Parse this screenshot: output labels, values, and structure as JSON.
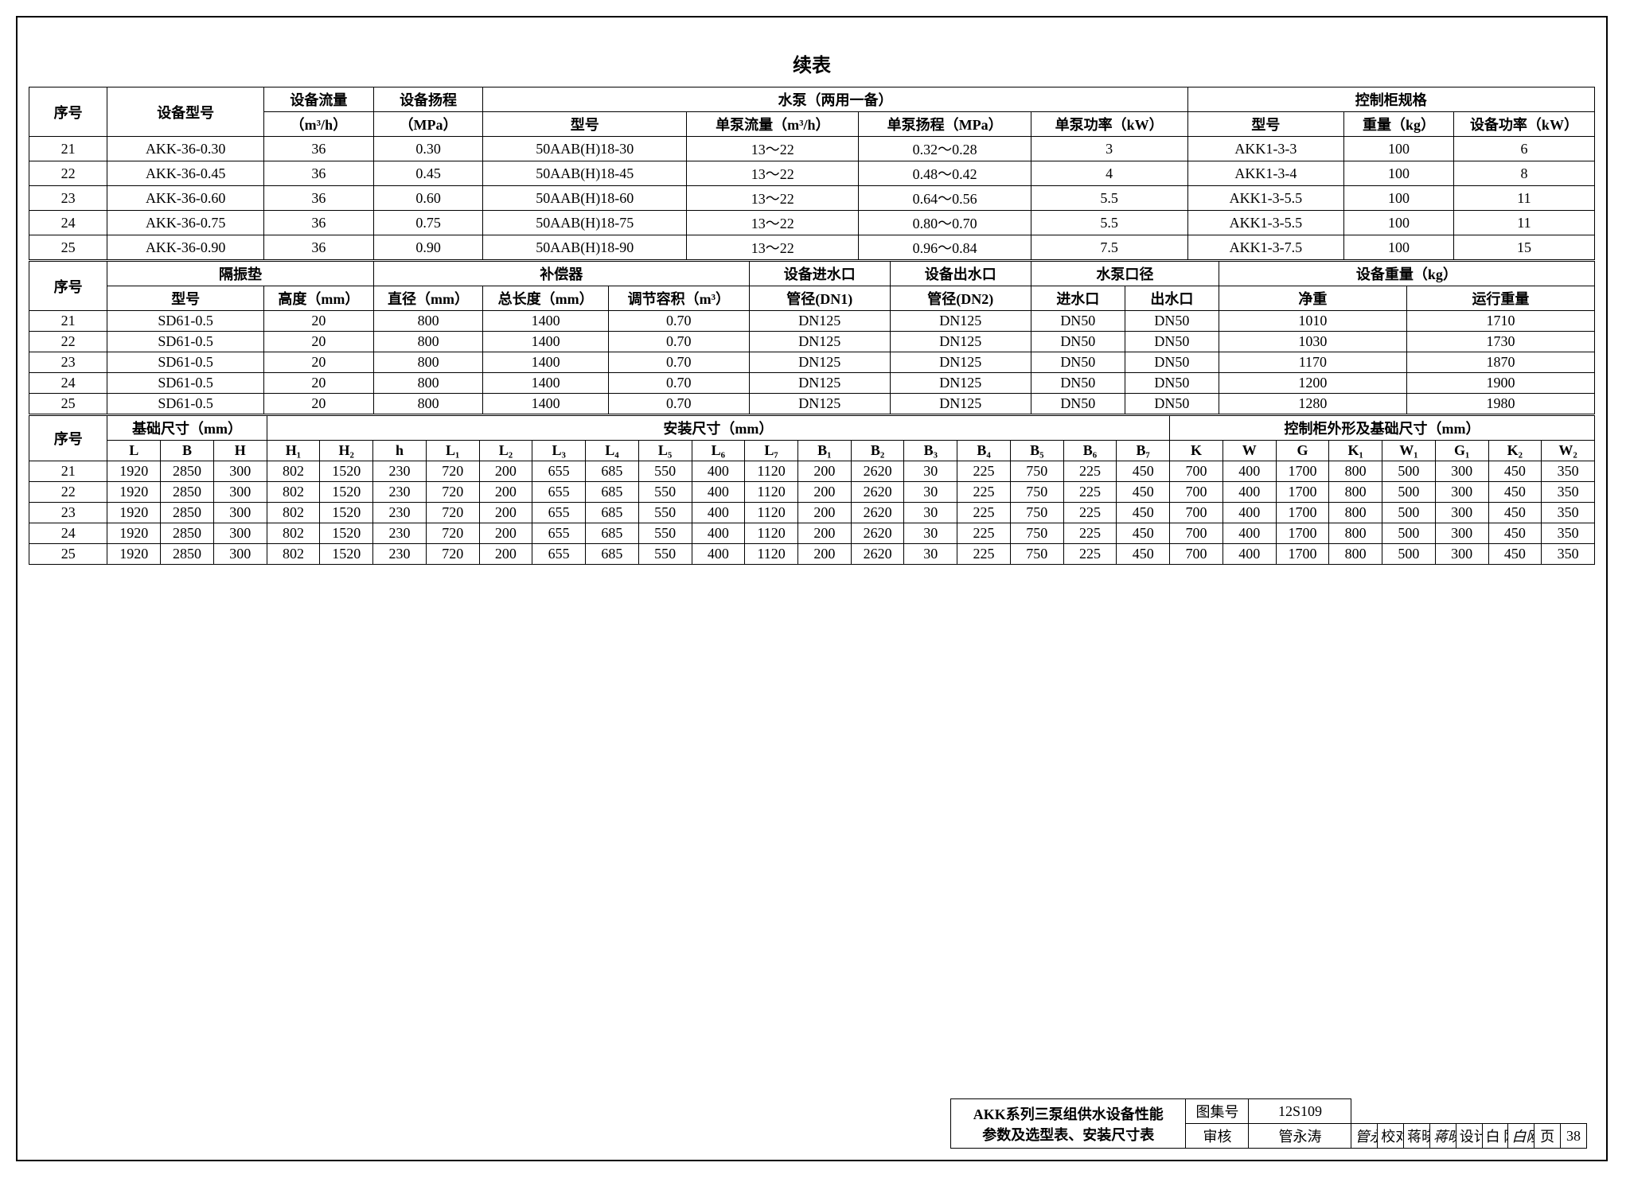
{
  "title": "续表",
  "t1": {
    "h": {
      "seq": "序号",
      "model": "设备型号",
      "flow": "设备流量",
      "flow_u": "（m³/h）",
      "head": "设备扬程",
      "head_u": "（MPa）",
      "pump": "水泵（两用一备）",
      "pump_model": "型号",
      "pump_flow": "单泵流量（m³/h）",
      "pump_head": "单泵扬程（MPa）",
      "pump_power": "单泵功率（kW）",
      "cab": "控制柜规格",
      "cab_model": "型号",
      "cab_weight": "重量（kg）",
      "cab_power": "设备功率（kW）"
    },
    "r": [
      {
        "n": "21",
        "m": "AKK-36-0.30",
        "f": "36",
        "hd": "0.30",
        "pm": "50AAB(H)18-30",
        "pf": "13～22",
        "ph": "0.32～0.28",
        "pp": "3",
        "cm": "AKK1-3-3",
        "cw": "100",
        "cp": "6"
      },
      {
        "n": "22",
        "m": "AKK-36-0.45",
        "f": "36",
        "hd": "0.45",
        "pm": "50AAB(H)18-45",
        "pf": "13～22",
        "ph": "0.48～0.42",
        "pp": "4",
        "cm": "AKK1-3-4",
        "cw": "100",
        "cp": "8"
      },
      {
        "n": "23",
        "m": "AKK-36-0.60",
        "f": "36",
        "hd": "0.60",
        "pm": "50AAB(H)18-60",
        "pf": "13～22",
        "ph": "0.64～0.56",
        "pp": "5.5",
        "cm": "AKK1-3-5.5",
        "cw": "100",
        "cp": "11"
      },
      {
        "n": "24",
        "m": "AKK-36-0.75",
        "f": "36",
        "hd": "0.75",
        "pm": "50AAB(H)18-75",
        "pf": "13～22",
        "ph": "0.80～0.70",
        "pp": "5.5",
        "cm": "AKK1-3-5.5",
        "cw": "100",
        "cp": "11"
      },
      {
        "n": "25",
        "m": "AKK-36-0.90",
        "f": "36",
        "hd": "0.90",
        "pm": "50AAB(H)18-90",
        "pf": "13～22",
        "ph": "0.96～0.84",
        "pp": "7.5",
        "cm": "AKK1-3-7.5",
        "cw": "100",
        "cp": "15"
      }
    ]
  },
  "t2": {
    "h": {
      "seq": "序号",
      "pad": "隔振垫",
      "pad_m": "型号",
      "pad_h": "高度（mm）",
      "comp": "补偿器",
      "comp_d": "直径（mm）",
      "comp_l": "总长度（mm）",
      "comp_v": "调节容积（m³）",
      "in": "设备进水口",
      "in2": "管径(DN1)",
      "out": "设备出水口",
      "out2": "管径(DN2)",
      "cal": "水泵口径",
      "cal_in": "进水口",
      "cal_out": "出水口",
      "wt": "设备重量（kg）",
      "wt_net": "净重",
      "wt_run": "运行重量"
    },
    "r": [
      {
        "n": "21",
        "pm": "SD61-0.5",
        "ph": "20",
        "cd": "800",
        "cl": "1400",
        "cv": "0.70",
        "di": "DN125",
        "do": "DN125",
        "ci": "DN50",
        "co": "DN50",
        "wn": "1010",
        "wr": "1710"
      },
      {
        "n": "22",
        "pm": "SD61-0.5",
        "ph": "20",
        "cd": "800",
        "cl": "1400",
        "cv": "0.70",
        "di": "DN125",
        "do": "DN125",
        "ci": "DN50",
        "co": "DN50",
        "wn": "1030",
        "wr": "1730"
      },
      {
        "n": "23",
        "pm": "SD61-0.5",
        "ph": "20",
        "cd": "800",
        "cl": "1400",
        "cv": "0.70",
        "di": "DN125",
        "do": "DN125",
        "ci": "DN50",
        "co": "DN50",
        "wn": "1170",
        "wr": "1870"
      },
      {
        "n": "24",
        "pm": "SD61-0.5",
        "ph": "20",
        "cd": "800",
        "cl": "1400",
        "cv": "0.70",
        "di": "DN125",
        "do": "DN125",
        "ci": "DN50",
        "co": "DN50",
        "wn": "1200",
        "wr": "1900"
      },
      {
        "n": "25",
        "pm": "SD61-0.5",
        "ph": "20",
        "cd": "800",
        "cl": "1400",
        "cv": "0.70",
        "di": "DN125",
        "do": "DN125",
        "ci": "DN50",
        "co": "DN50",
        "wn": "1280",
        "wr": "1980"
      }
    ]
  },
  "t3": {
    "h": {
      "seq": "序号",
      "base": "基础尺寸（mm）",
      "inst": "安装尺寸（mm）",
      "cab": "控制柜外形及基础尺寸（mm）",
      "c": [
        "L",
        "B",
        "H",
        "H₁",
        "H₂",
        "h",
        "L₁",
        "L₂",
        "L₃",
        "L₄",
        "L₅",
        "L₆",
        "L₇",
        "B₁",
        "B₂",
        "B₃",
        "B₄",
        "B₅",
        "B₆",
        "B₇",
        "K",
        "W",
        "G",
        "K₁",
        "W₁",
        "G₁",
        "K₂",
        "W₂"
      ]
    },
    "r": [
      {
        "n": "21",
        "v": [
          "1920",
          "2850",
          "300",
          "802",
          "1520",
          "230",
          "720",
          "200",
          "655",
          "685",
          "550",
          "400",
          "1120",
          "200",
          "2620",
          "30",
          "225",
          "750",
          "225",
          "450",
          "700",
          "400",
          "1700",
          "800",
          "500",
          "300",
          "450",
          "350"
        ]
      },
      {
        "n": "22",
        "v": [
          "1920",
          "2850",
          "300",
          "802",
          "1520",
          "230",
          "720",
          "200",
          "655",
          "685",
          "550",
          "400",
          "1120",
          "200",
          "2620",
          "30",
          "225",
          "750",
          "225",
          "450",
          "700",
          "400",
          "1700",
          "800",
          "500",
          "300",
          "450",
          "350"
        ]
      },
      {
        "n": "23",
        "v": [
          "1920",
          "2850",
          "300",
          "802",
          "1520",
          "230",
          "720",
          "200",
          "655",
          "685",
          "550",
          "400",
          "1120",
          "200",
          "2620",
          "30",
          "225",
          "750",
          "225",
          "450",
          "700",
          "400",
          "1700",
          "800",
          "500",
          "300",
          "450",
          "350"
        ]
      },
      {
        "n": "24",
        "v": [
          "1920",
          "2850",
          "300",
          "802",
          "1520",
          "230",
          "720",
          "200",
          "655",
          "685",
          "550",
          "400",
          "1120",
          "200",
          "2620",
          "30",
          "225",
          "750",
          "225",
          "450",
          "700",
          "400",
          "1700",
          "800",
          "500",
          "300",
          "450",
          "350"
        ]
      },
      {
        "n": "25",
        "v": [
          "1920",
          "2850",
          "300",
          "802",
          "1520",
          "230",
          "720",
          "200",
          "655",
          "685",
          "550",
          "400",
          "1120",
          "200",
          "2620",
          "30",
          "225",
          "750",
          "225",
          "450",
          "700",
          "400",
          "1700",
          "800",
          "500",
          "300",
          "450",
          "350"
        ]
      }
    ]
  },
  "tb": {
    "line1": "AKK系列三泵组供水设备性能",
    "line2": "参数及选型表、安装尺寸表",
    "set_l": "图集号",
    "set_v": "12S109",
    "rev": "审核",
    "rev_n": "管永涛",
    "rev_s": "管永涛",
    "chk": "校对",
    "chk_n": "蒋晓红",
    "chk_s": "蒋晓红",
    "des": "设计",
    "des_n": "白 刚",
    "des_s": "白刚",
    "page_l": "页",
    "page_v": "38"
  }
}
